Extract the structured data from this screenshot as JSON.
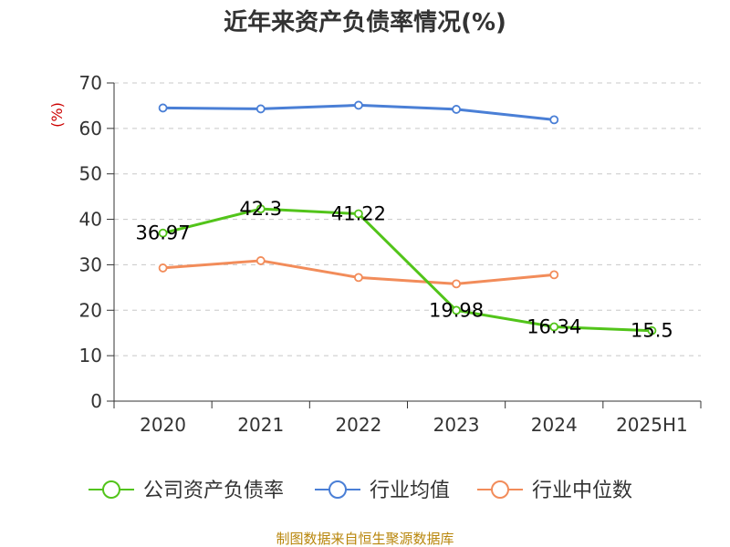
{
  "chart_data": {
    "type": "line",
    "title": "近年来资产负债率情况(%)",
    "ylabel": "(%)",
    "xlabel": "",
    "categories": [
      "2020",
      "2021",
      "2022",
      "2023",
      "2024",
      "2025H1"
    ],
    "yticks": [
      "0",
      "10",
      "20",
      "30",
      "40",
      "50",
      "60",
      "70"
    ],
    "ylim": [
      0,
      70
    ],
    "grid": "horizontal dashed",
    "legend_position": "bottom",
    "series": [
      {
        "name": "公司资产负债率",
        "color": "#52c41a",
        "values": [
          36.97,
          42.3,
          41.22,
          19.98,
          16.34,
          15.5
        ],
        "labels": [
          "36.97",
          "42.3",
          "41.22",
          "19.98",
          "16.34",
          "15.5"
        ]
      },
      {
        "name": "行业均值",
        "color": "#4a7fd6",
        "values": [
          64.5,
          64.3,
          65.1,
          64.2,
          61.9,
          null
        ]
      },
      {
        "name": "行业中位数",
        "color": "#f28c5a",
        "values": [
          29.3,
          30.9,
          27.2,
          25.8,
          27.8,
          null
        ]
      }
    ]
  },
  "source": "制图数据来自恒生聚源数据库"
}
